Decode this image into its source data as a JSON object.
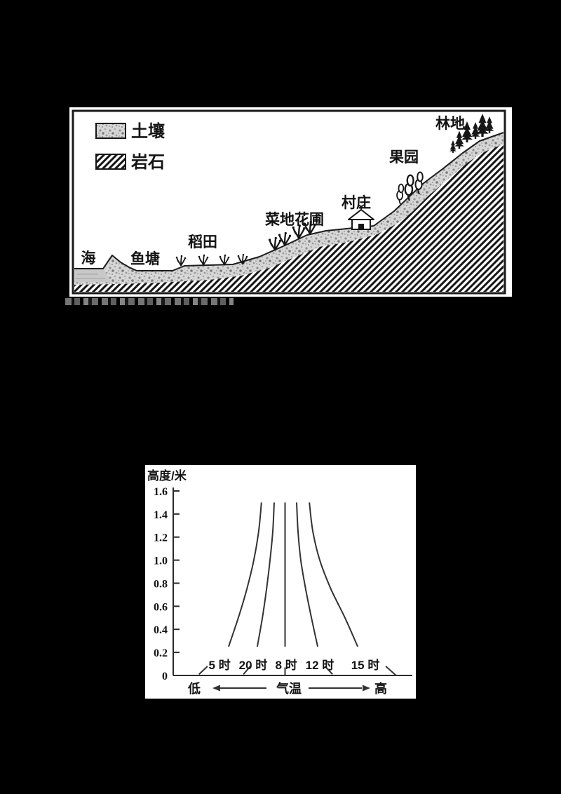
{
  "page": {
    "background": "#000000",
    "panel_background": "#ffffff",
    "ink_color": "#141414"
  },
  "terrain_diagram": {
    "legend": {
      "soil": "土壤",
      "rock": "岩石"
    },
    "areas": [
      "海",
      "鱼塘",
      "稻田",
      "菜地花圃",
      "村庄",
      "果园",
      "林地"
    ],
    "icons": [
      "soil-texture-swatch",
      "rock-hatch-swatch",
      "sea-water",
      "rice-plant-icons",
      "vegetable-plant-icons",
      "house-icon",
      "orchard-tree-icons",
      "pine-tree-icons"
    ]
  },
  "chart_data": {
    "type": "line",
    "title": "",
    "ylabel": "高度/米",
    "ylim": [
      0,
      1.6
    ],
    "yticks": [
      "1.6",
      "1.4",
      "1.2",
      "1.0",
      "0.8",
      "0.6",
      "0.4",
      "0.2",
      "0"
    ],
    "grid": false,
    "legend_position": "labels-at-curve-feet",
    "x_axis": {
      "left_label": "低",
      "axis_label": "气温",
      "right_label": "高",
      "scale": "relative-unlabeled"
    },
    "series": [
      {
        "name": "5 时",
        "label_x": -2.83,
        "points": [
          [
            -2.44,
            0.25
          ],
          [
            -2.02,
            0.5
          ],
          [
            -1.65,
            0.75
          ],
          [
            -1.35,
            1.0
          ],
          [
            -1.14,
            1.25
          ],
          [
            -1.02,
            1.5
          ]
        ],
        "dash": [
          [
            -3.72,
            0.01
          ],
          [
            -3.35,
            0.08
          ]
        ]
      },
      {
        "name": "20 时",
        "label_x": -1.38,
        "points": [
          [
            -1.2,
            0.25
          ],
          [
            -0.98,
            0.5
          ],
          [
            -0.8,
            0.75
          ],
          [
            -0.65,
            1.0
          ],
          [
            -0.53,
            1.25
          ],
          [
            -0.47,
            1.5
          ]
        ],
        "dash": [
          [
            -1.8,
            0.01
          ],
          [
            -1.5,
            0.08
          ]
        ]
      },
      {
        "name": "8 时",
        "label_x": 0.05,
        "points": [
          [
            0,
            0.25
          ],
          [
            0,
            0.9
          ],
          [
            0,
            1.5
          ]
        ],
        "dash": [
          [
            0,
            0.0
          ],
          [
            0,
            0.07
          ]
        ]
      },
      {
        "name": "12 时",
        "label_x": 1.5,
        "points": [
          [
            1.41,
            0.25
          ],
          [
            1.14,
            0.5
          ],
          [
            0.89,
            0.75
          ],
          [
            0.68,
            1.0
          ],
          [
            0.56,
            1.25
          ],
          [
            0.5,
            1.5
          ]
        ],
        "dash": [
          [
            1.72,
            0.08
          ],
          [
            2.05,
            0.01
          ]
        ]
      },
      {
        "name": "15 时",
        "label_x": 3.47,
        "points": [
          [
            3.14,
            0.25
          ],
          [
            2.59,
            0.5
          ],
          [
            1.98,
            0.75
          ],
          [
            1.5,
            1.0
          ],
          [
            1.2,
            1.25
          ],
          [
            1.05,
            1.5
          ]
        ],
        "dash": [
          [
            4.35,
            0.08
          ],
          [
            4.8,
            0.0
          ]
        ]
      }
    ]
  }
}
